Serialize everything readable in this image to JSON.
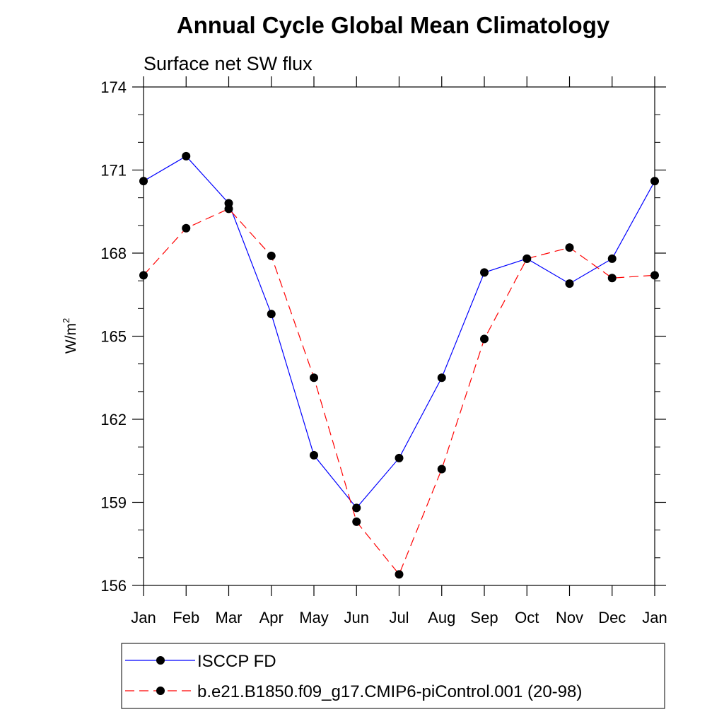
{
  "chart_data": {
    "type": "line",
    "title": "Annual Cycle Global Mean Climatology",
    "subtitle": "Surface net SW flux",
    "ylabel": "W/m",
    "ylabel_superscript": "2",
    "categories": [
      "Jan",
      "Feb",
      "Mar",
      "Apr",
      "May",
      "Jun",
      "Jul",
      "Aug",
      "Sep",
      "Oct",
      "Nov",
      "Dec",
      "Jan"
    ],
    "ylim": [
      156,
      174
    ],
    "yticks": [
      156,
      159,
      162,
      165,
      168,
      171,
      174
    ],
    "grid": false,
    "legend_position": "bottom",
    "series": [
      {
        "name": "ISCCP FD",
        "color": "#0000ff",
        "dash": "solid",
        "marker": "filled-circle",
        "values": [
          170.6,
          171.5,
          169.8,
          165.8,
          160.7,
          158.8,
          160.6,
          163.5,
          167.3,
          167.8,
          166.9,
          167.8,
          170.6
        ]
      },
      {
        "name": "b.e21.B1850.f09_g17.CMIP6-piControl.001 (20-98)",
        "color": "#ff0000",
        "dash": "dashed",
        "marker": "filled-circle",
        "values": [
          167.2,
          168.9,
          169.6,
          167.9,
          163.5,
          158.3,
          156.4,
          160.2,
          164.9,
          167.8,
          168.2,
          167.1,
          167.2
        ]
      }
    ]
  }
}
